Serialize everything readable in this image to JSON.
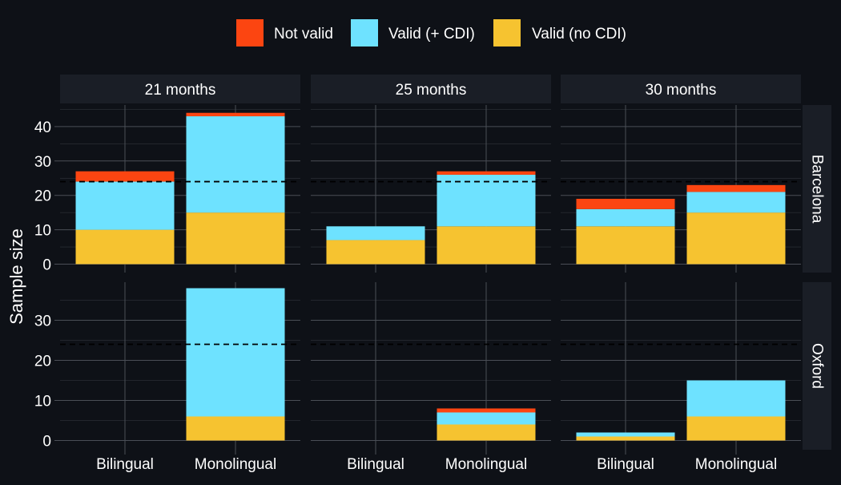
{
  "chart_data": {
    "type": "bar",
    "stacked": true,
    "facet_columns": [
      "21 months",
      "25 months",
      "30 months"
    ],
    "facet_rows": [
      "Barcelona",
      "Oxford"
    ],
    "categories": [
      "Bilingual",
      "Monolingual"
    ],
    "ylabel": "Sample size",
    "xlabel": "",
    "legend": {
      "position": "top",
      "entries": [
        {
          "key": "not_valid",
          "label": "Not valid",
          "color": "#fc4511"
        },
        {
          "key": "valid_cdi",
          "label": "Valid (+ CDI)",
          "color": "#6ee2ff"
        },
        {
          "key": "valid_nocdi",
          "label": "Valid (no CDI)",
          "color": "#f6c330"
        }
      ]
    },
    "reference_line": {
      "y": 24,
      "style": "dashed",
      "color": "#000000"
    },
    "rows": [
      {
        "name": "Barcelona",
        "ylim": [
          0,
          44
        ],
        "yticks": [
          0,
          10,
          20,
          30,
          40
        ],
        "panels": [
          {
            "column": "21 months",
            "valid_nocdi": [
              10,
              15
            ],
            "valid_cdi": [
              14,
              28
            ],
            "not_valid": [
              3,
              1
            ]
          },
          {
            "column": "25 months",
            "valid_nocdi": [
              7,
              11
            ],
            "valid_cdi": [
              4,
              15
            ],
            "not_valid": [
              0,
              1
            ]
          },
          {
            "column": "30 months",
            "valid_nocdi": [
              11,
              15
            ],
            "valid_cdi": [
              5,
              6
            ],
            "not_valid": [
              3,
              2
            ]
          }
        ]
      },
      {
        "name": "Oxford",
        "ylim": [
          0,
          38
        ],
        "yticks": [
          0,
          10,
          20,
          30
        ],
        "panels": [
          {
            "column": "21 months",
            "valid_nocdi": [
              0,
              6
            ],
            "valid_cdi": [
              0,
              32
            ],
            "not_valid": [
              0,
              0
            ]
          },
          {
            "column": "25 months",
            "valid_nocdi": [
              0,
              4
            ],
            "valid_cdi": [
              0,
              3
            ],
            "not_valid": [
              0,
              1
            ]
          },
          {
            "column": "30 months",
            "valid_nocdi": [
              1,
              6
            ],
            "valid_cdi": [
              1,
              9
            ],
            "not_valid": [
              0,
              0
            ]
          }
        ]
      }
    ],
    "grid": true
  },
  "colors": {
    "background": "#0e1117",
    "strip": "#1a1e26",
    "grid": "#4a4e56",
    "text": "#ffffff"
  }
}
